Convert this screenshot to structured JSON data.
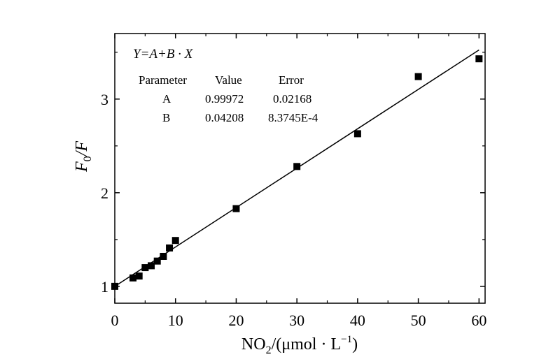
{
  "chart_data": {
    "type": "scatter",
    "xlabel": {
      "main": "NO",
      "sub": "2",
      "rest": "/(μmol · L",
      "sup": "−1",
      "close": ")"
    },
    "ylabel": {
      "main": "F",
      "sub": "0",
      "rest": "/F"
    },
    "xlim": [
      0,
      61
    ],
    "ylim": [
      0.82,
      3.7
    ],
    "x_ticks": [
      0,
      10,
      20,
      30,
      40,
      50,
      60
    ],
    "y_ticks": [
      1,
      2,
      3
    ],
    "series": [
      {
        "marker": "square",
        "color": "#000000",
        "points": [
          {
            "x": 0,
            "y": 1.0
          },
          {
            "x": 3,
            "y": 1.09
          },
          {
            "x": 4,
            "y": 1.11
          },
          {
            "x": 5,
            "y": 1.2
          },
          {
            "x": 6,
            "y": 1.22
          },
          {
            "x": 7,
            "y": 1.27
          },
          {
            "x": 8,
            "y": 1.32
          },
          {
            "x": 9,
            "y": 1.41
          },
          {
            "x": 10,
            "y": 1.49
          },
          {
            "x": 20,
            "y": 1.83
          },
          {
            "x": 30,
            "y": 2.28
          },
          {
            "x": 40,
            "y": 2.63
          },
          {
            "x": 50,
            "y": 3.24
          },
          {
            "x": 60,
            "y": 3.43
          }
        ]
      }
    ],
    "fit_line": {
      "intercept": 0.99972,
      "slope": 0.04208,
      "x_range": [
        0,
        60
      ]
    },
    "annotation": {
      "equation": "Y=A+B · X",
      "headers": [
        "Parameter",
        "Value",
        "Error"
      ],
      "rows": [
        [
          "A",
          "0.99972",
          "0.02168"
        ],
        [
          "B",
          "0.04208",
          "8.3745E-4"
        ]
      ]
    },
    "grid": false
  }
}
